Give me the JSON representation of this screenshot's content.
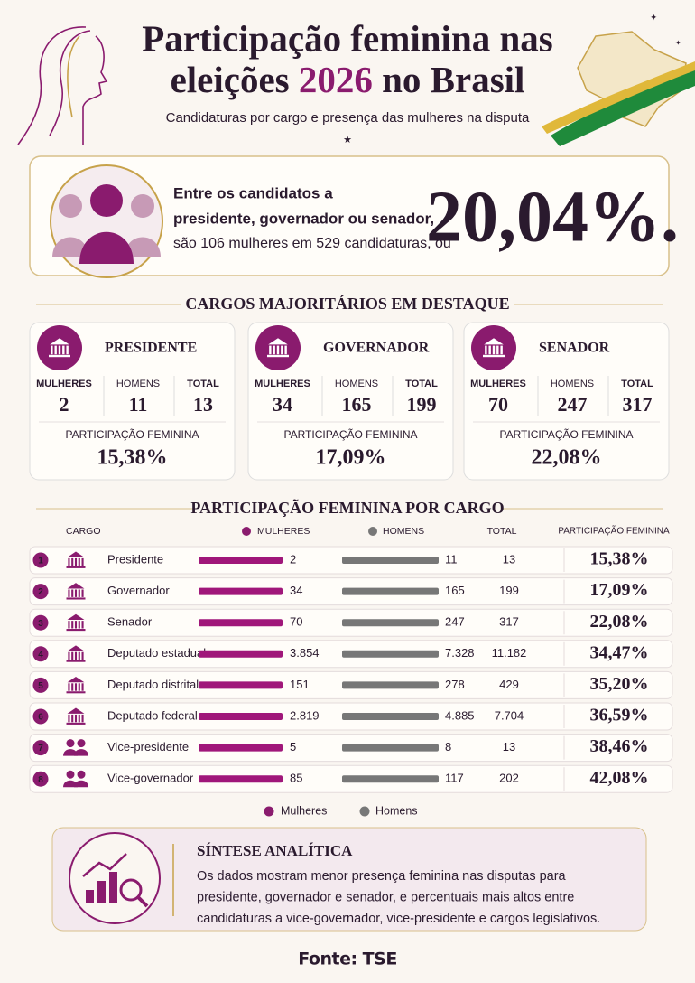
{
  "header": {
    "title_line1": "Participação feminina nas",
    "title_line2_start": "eleições",
    "title_year": "2026",
    "title_line2_end": "no Brasil",
    "subtitle": "Candidaturas por cargo e presença das mulheres na disputa"
  },
  "highlight": {
    "line1": "Entre os candidatos a",
    "line2": "presidente, governador ou senador,",
    "line3": "são 106 mulheres em 529 candidaturas, ou",
    "percent": "20,04%."
  },
  "cards_section": {
    "title": "CARGOS MAJORITÁRIOS EM DESTAQUE",
    "cards": [
      {
        "title": "PRESIDENTE",
        "women_label": "MULHERES",
        "men_label": "HOMENS",
        "total_label": "TOTAL",
        "women": "2",
        "men": "11",
        "total": "13",
        "share_label": "PARTICIPAÇÃO FEMININA",
        "share": "15,38%"
      },
      {
        "title": "GOVERNADOR",
        "women_label": "MULHERES",
        "men_label": "HOMENS",
        "total_label": "TOTAL",
        "women": "34",
        "men": "165",
        "total": "199",
        "share_label": "PARTICIPAÇÃO FEMININA",
        "share": "17,09%"
      },
      {
        "title": "SENADOR",
        "women_label": "MULHERES",
        "men_label": "HOMENS",
        "total_label": "TOTAL",
        "women": "70",
        "men": "247",
        "total": "317",
        "share_label": "PARTICIPAÇÃO FEMININA",
        "share": "22,08%"
      }
    ]
  },
  "table": {
    "title": "PARTICIPAÇÃO FEMININA POR CARGO",
    "headers": [
      "CARGO",
      "MULHERES",
      "HOMENS",
      "TOTAL",
      "PARTICIPAÇÃO FEMININA"
    ],
    "rows": [
      [
        "1",
        "Presidente",
        "2",
        "11",
        "13",
        "15,38%"
      ],
      [
        "2",
        "Governador",
        "34",
        "165",
        "199",
        "17,09%"
      ],
      [
        "3",
        "Senador",
        "70",
        "247",
        "317",
        "22,08%"
      ],
      [
        "4",
        "Deputado estadual",
        "3.854",
        "7.328",
        "11.182",
        "34,47%"
      ],
      [
        "5",
        "Deputado distrital",
        "151",
        "278",
        "429",
        "35,20%"
      ],
      [
        "6",
        "Deputado federal",
        "2.819",
        "4.885",
        "7.704",
        "36,59%"
      ],
      [
        "7",
        "Vice-presidente",
        "5",
        "8",
        "13",
        "38,46%"
      ],
      [
        "8",
        "Vice-governador",
        "85",
        "117",
        "202",
        "42,08%"
      ]
    ],
    "legend": [
      "Mulheres",
      "Homens"
    ]
  },
  "synthesis": {
    "title": "SÍNTESE ANALÍTICA",
    "lines": [
      "Os dados mostram menor presença feminina nas disputas para",
      "presidente, governador e senador, e percentuais mais altos entre",
      "candidaturas a vice-governador, vice-presidente e cargos legislativos."
    ]
  },
  "footer": {
    "source": "Fonte: TSE"
  }
}
